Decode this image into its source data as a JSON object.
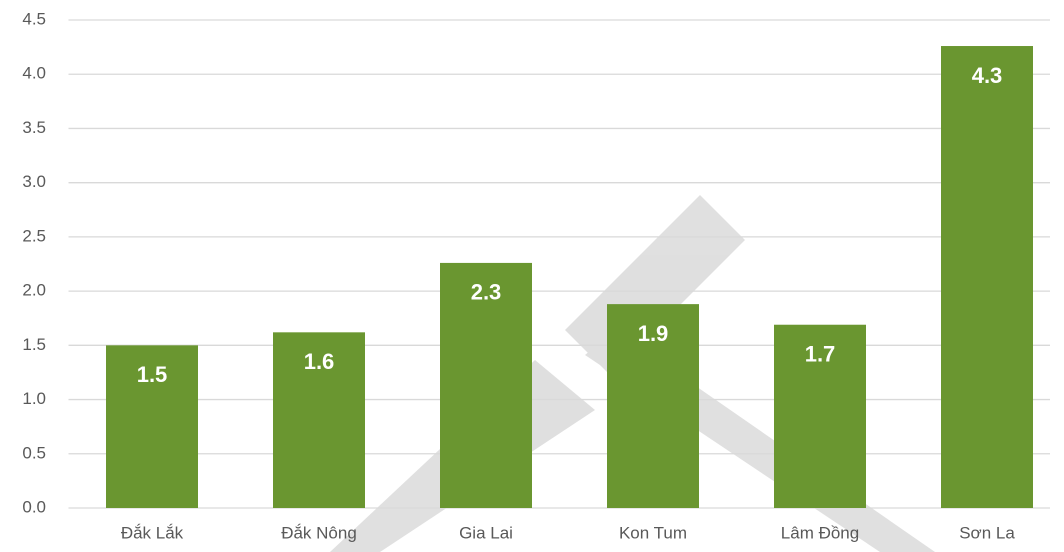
{
  "chart_data": {
    "type": "bar",
    "categories": [
      "Đắk Lắk",
      "Đắk Nông",
      "Gia Lai",
      "Kon Tum",
      "Lâm Đồng",
      "Sơn La"
    ],
    "values": [
      1.5,
      1.62,
      2.26,
      1.88,
      1.69,
      4.26
    ],
    "value_labels": [
      "1.5",
      "1.6",
      "2.3",
      "1.9",
      "1.7",
      "4.3"
    ],
    "color": "#6a9630",
    "ylim": [
      0,
      4.5
    ],
    "yticks": [
      {
        "value": 0,
        "label": "0.0"
      },
      0.5,
      {
        "value": 1,
        "label": "1.0"
      },
      1.5,
      {
        "value": 2,
        "label": "2.0"
      },
      2.5,
      {
        "value": 3,
        "label": "3.0"
      },
      3.5,
      {
        "value": 4,
        "label": "4.0"
      },
      4.5
    ],
    "grid": true
  }
}
